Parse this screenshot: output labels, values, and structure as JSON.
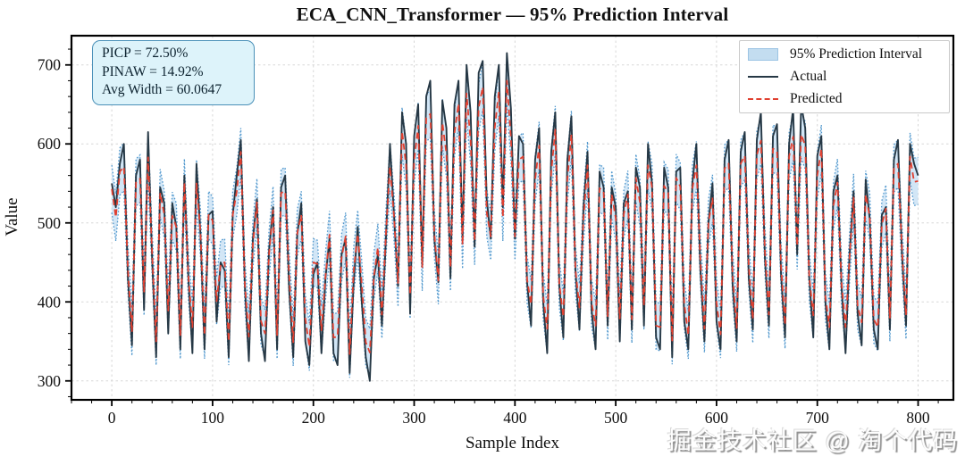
{
  "title": "ECA_CNN_Transformer — 95% Prediction Interval",
  "stats_box": {
    "line1": "PICP = 72.50%",
    "line2": "PINAW = 14.92%",
    "line3": "Avg Width = 60.0647"
  },
  "legend": {
    "items": [
      {
        "label": "95% Prediction Interval",
        "swatch": "band-patch"
      },
      {
        "label": "Actual",
        "swatch": "solid-line"
      },
      {
        "label": "Predicted",
        "swatch": "dashed-line"
      }
    ]
  },
  "watermark": "掘金技术社区 @ 淘个代码",
  "colors": {
    "actual": "#263845",
    "predicted": "#e04030",
    "band_fill": "#c7e0f4",
    "band_edge": "#4e96cc",
    "stats_bg": "#ddf3fa",
    "stats_border": "#4a90b8",
    "grid": "#d7d7d7",
    "spine": "#000000"
  },
  "chart_data": {
    "type": "line",
    "title": "ECA_CNN_Transformer — 95% Prediction Interval",
    "xlabel": "Sample Index",
    "ylabel": "Value",
    "xlim": [
      -40,
      835
    ],
    "ylim": [
      276,
      737
    ],
    "x_ticks": [
      0,
      100,
      200,
      300,
      400,
      500,
      600,
      700,
      800
    ],
    "y_ticks": [
      300,
      400,
      500,
      600,
      700
    ],
    "minor_tick_step": 20,
    "grid": "dashed major both axes",
    "legend_position": "upper right",
    "x_start": 0,
    "x_step": 4,
    "interval": {
      "name": "95% Prediction Interval",
      "based_on": "Predicted",
      "half_width": 30.03,
      "avg_width": 60.0647,
      "picp_pct": 72.5,
      "pinaw_pct": 14.92
    },
    "series": [
      {
        "name": "Actual",
        "style": "solid",
        "values": [
          550,
          520,
          575,
          600,
          430,
          345,
          560,
          580,
          390,
          615,
          455,
          330,
          545,
          525,
          360,
          525,
          495,
          340,
          560,
          430,
          335,
          575,
          485,
          340,
          510,
          515,
          375,
          450,
          440,
          330,
          510,
          560,
          605,
          420,
          325,
          480,
          530,
          360,
          325,
          465,
          520,
          340,
          545,
          560,
          415,
          330,
          485,
          525,
          350,
          320,
          435,
          450,
          335,
          430,
          480,
          335,
          320,
          460,
          480,
          310,
          425,
          495,
          400,
          330,
          300,
          430,
          460,
          370,
          480,
          600,
          510,
          420,
          640,
          600,
          385,
          610,
          650,
          445,
          660,
          680,
          480,
          425,
          655,
          620,
          430,
          650,
          680,
          480,
          700,
          640,
          470,
          690,
          705,
          530,
          480,
          660,
          700,
          520,
          715,
          645,
          480,
          610,
          600,
          425,
          370,
          580,
          620,
          400,
          335,
          590,
          640,
          420,
          355,
          580,
          635,
          440,
          365,
          520,
          590,
          390,
          340,
          565,
          545,
          370,
          545,
          520,
          350,
          525,
          540,
          365,
          570,
          545,
          370,
          600,
          550,
          355,
          340,
          570,
          545,
          330,
          565,
          570,
          375,
          340,
          550,
          600,
          440,
          350,
          500,
          550,
          375,
          340,
          580,
          605,
          420,
          350,
          590,
          615,
          430,
          365,
          605,
          640,
          455,
          370,
          610,
          625,
          435,
          355,
          600,
          645,
          460,
          650,
          620,
          430,
          355,
          585,
          610,
          400,
          340,
          540,
          560,
          420,
          335,
          460,
          540,
          385,
          345,
          555,
          505,
          365,
          340,
          510,
          520,
          365,
          580,
          605,
          460,
          370,
          600,
          575,
          560
        ]
      },
      {
        "name": "Predicted",
        "style": "dashed",
        "values": [
          543,
          507,
          565,
          571,
          442,
          362,
          551,
          556,
          413,
          583,
          463,
          350,
          538,
          511,
          389,
          509,
          495,
          358,
          551,
          433,
          368,
          550,
          487,
          358,
          510,
          503,
          401,
          448,
          450,
          350,
          510,
          540,
          590,
          423,
          356,
          473,
          526,
          376,
          360,
          460,
          516,
          358,
          538,
          540,
          434,
          349,
          487,
          510,
          379,
          343,
          450,
          448,
          364,
          432,
          485,
          355,
          356,
          456,
          483,
          334,
          440,
          486,
          422,
          349,
          336,
          432,
          469,
          384,
          487,
          571,
          508,
          424,
          616,
          573,
          409,
          579,
          623,
          444,
          633,
          638,
          487,
          427,
          627,
          588,
          444,
          614,
          651,
          472,
          664,
          604,
          477,
          646,
          672,
          513,
          483,
          621,
          666,
          507,
          680,
          607,
          483,
          580,
          584,
          429,
          397,
          554,
          598,
          408,
          366,
          564,
          618,
          423,
          381,
          555,
          612,
          441,
          393,
          505,
          573,
          399,
          370,
          544,
          540,
          382,
          536,
          506,
          379,
          511,
          536,
          378,
          557,
          526,
          395,
          573,
          545,
          370,
          368,
          547,
          538,
          351,
          557,
          546,
          397,
          358,
          543,
          573,
          454,
          366,
          500,
          531,
          399,
          359,
          569,
          575,
          434,
          367,
          575,
          585,
          446,
          378,
          586,
          604,
          465,
          384,
          594,
          591,
          446,
          371,
          584,
          609,
          471,
          612,
          598,
          432,
          383,
          560,
          594,
          407,
          368,
          522,
          551,
          425,
          368,
          456,
          532,
          395,
          374,
          536,
          508,
          378,
          368,
          498,
          518,
          380,
          569,
          575,
          467,
          383,
          584,
          552,
          553
        ]
      }
    ]
  }
}
